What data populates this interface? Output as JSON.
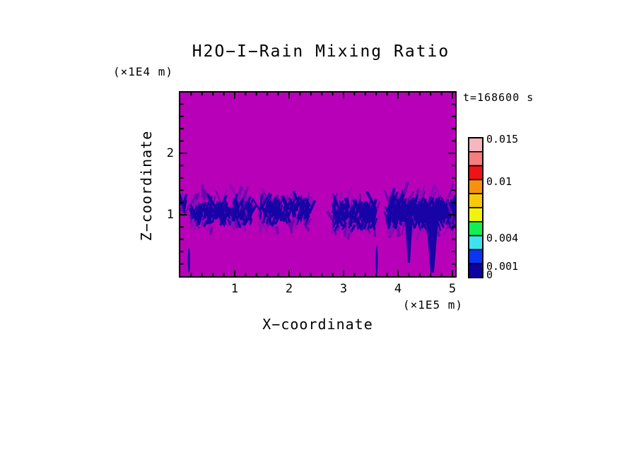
{
  "title": "H2O−I−Rain Mixing Ratio",
  "time_label": "t=168600 s",
  "x_axis": {
    "title": "X−coordinate",
    "unit": "(×1E5 m)",
    "major_ticks": [
      1,
      2,
      3,
      4,
      5
    ],
    "minor_step": 0.2,
    "range": [
      0,
      5.06
    ]
  },
  "z_axis": {
    "title": "Z−coordinate",
    "unit": "(×1E4 m)",
    "major_ticks": [
      1,
      2
    ],
    "minor_step": 0.2,
    "range": [
      0,
      3.0
    ]
  },
  "colorbar": {
    "segments_top_to_bottom": [
      "#F7B6BE",
      "#F57D7D",
      "#EF1216",
      "#F79210",
      "#F6C90B",
      "#F2F20C",
      "#12EF53",
      "#3FE2EF",
      "#0A35F2",
      "#0D01A0"
    ],
    "labels": [
      {
        "text": "0.015",
        "boundary": 0
      },
      {
        "text": "0.01",
        "boundary": 3
      },
      {
        "text": "0.004",
        "boundary": 7
      },
      {
        "text": "0.001",
        "boundary": 9
      },
      {
        "text": "0",
        "boundary": 10
      }
    ]
  },
  "chart_data": {
    "type": "heatmap",
    "title": "H2O-I-Rain Mixing Ratio",
    "time": "t=168600 s",
    "xlabel": "X-coordinate (×1E5 m)",
    "ylabel": "Z-coordinate (×1E4 m)",
    "xlim": [
      0,
      5.06
    ],
    "ylim": [
      0,
      3.0
    ],
    "grid": false,
    "legend_position": "right-colorbar",
    "levels": [
      0,
      0.001,
      0.004,
      0.01,
      0.015
    ],
    "palette_low_to_high": [
      "#0D01A0",
      "#0A35F2",
      "#3FE2EF",
      "#12EF53",
      "#F2F20C",
      "#F6C90B",
      "#F79210",
      "#EF1216",
      "#F57D7D",
      "#F7B6BE"
    ],
    "background_color": "#B800B8",
    "feature_color_core": "#1703A6",
    "feature_color_fringe": "#8A0CB8",
    "features": [
      {
        "type": "streak-cluster",
        "x": [
          0.2,
          1.3
        ],
        "z_core": [
          0.78,
          1.18
        ],
        "z_fringe": [
          0.62,
          1.34
        ],
        "density": 0.62
      },
      {
        "type": "streak-cluster",
        "x": [
          1.44,
          2.38
        ],
        "z_core": [
          0.78,
          1.2
        ],
        "z_fringe": [
          0.64,
          1.36
        ],
        "density": 0.62
      },
      {
        "type": "streak-cluster",
        "x": [
          2.78,
          3.58
        ],
        "z_core": [
          0.7,
          1.18
        ],
        "z_fringe": [
          0.58,
          1.32
        ],
        "density": 0.85
      },
      {
        "type": "streak-cluster",
        "x": [
          3.8,
          5.04
        ],
        "z_core": [
          0.74,
          1.22
        ],
        "z_fringe": [
          0.55,
          1.4
        ],
        "density": 1.0
      },
      {
        "type": "solid-band",
        "x": [
          4.28,
          5.02
        ],
        "z": [
          0.84,
          1.2
        ]
      },
      {
        "type": "drip",
        "x": 4.2,
        "z": [
          0.22,
          0.95
        ],
        "w_top": 11,
        "w_bot": 3
      },
      {
        "type": "drip",
        "x": 4.63,
        "z": [
          0.06,
          0.92
        ],
        "w_top": 17,
        "w_bot": 5
      },
      {
        "type": "spike",
        "x": 0.16,
        "z": [
          0.05,
          0.46
        ],
        "w": 3.2
      },
      {
        "type": "spike",
        "x": 3.61,
        "z": [
          0.03,
          0.5
        ],
        "w": 3.0
      },
      {
        "type": "edge-patch",
        "x": [
          0.0,
          0.07
        ],
        "z": [
          0.92,
          1.24
        ]
      },
      {
        "type": "edge-patch",
        "x": [
          4.96,
          5.06
        ],
        "z": [
          0.82,
          1.16
        ]
      }
    ]
  }
}
